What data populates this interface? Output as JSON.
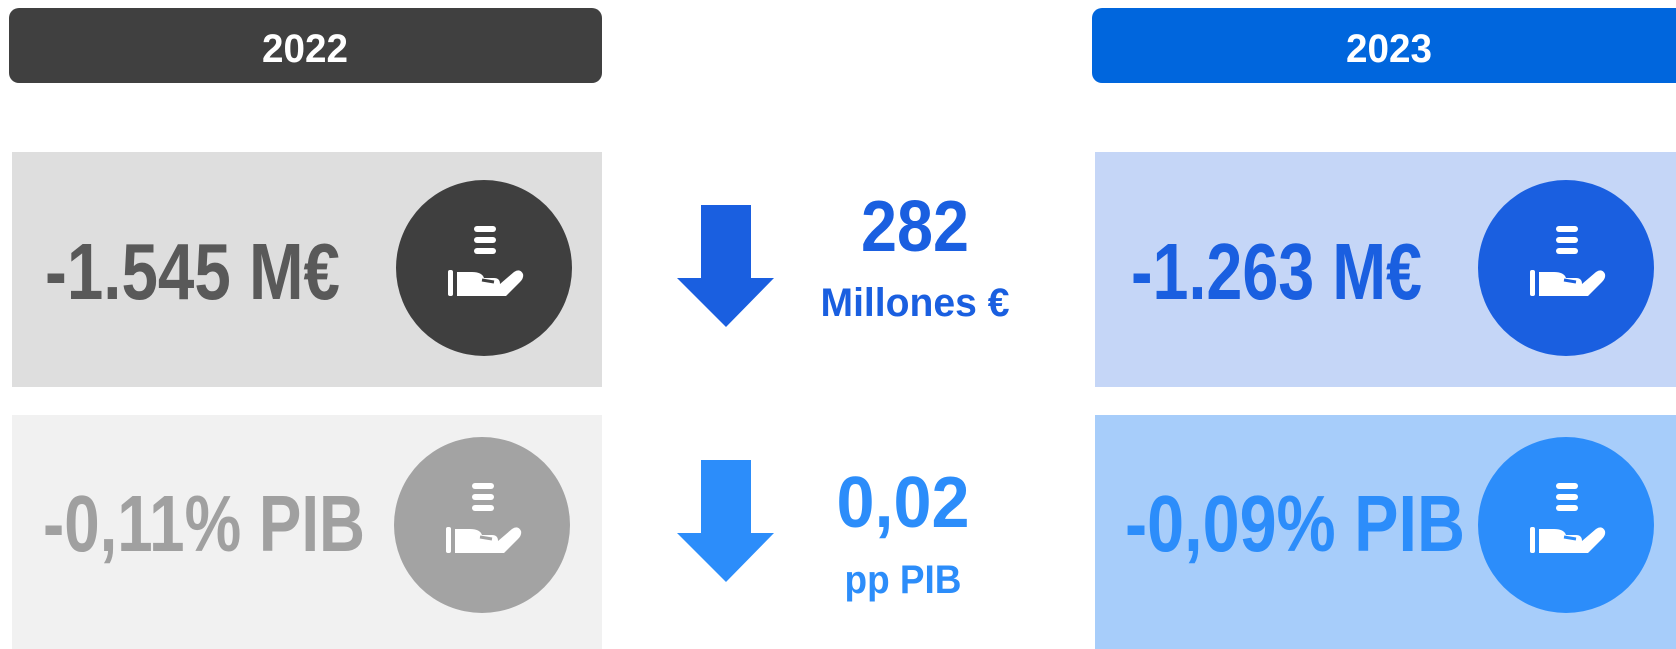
{
  "columns": [
    {
      "header": "2022",
      "rows": [
        "-1.545 M€",
        "-0,11% PIB"
      ]
    },
    {
      "header": "2023",
      "rows": [
        "-1.263 M€",
        "-0,09% PIB"
      ]
    }
  ],
  "differences": [
    {
      "value": "282",
      "unit": "Millones €"
    },
    {
      "value": "0,02",
      "unit": "pp PIB"
    }
  ]
}
